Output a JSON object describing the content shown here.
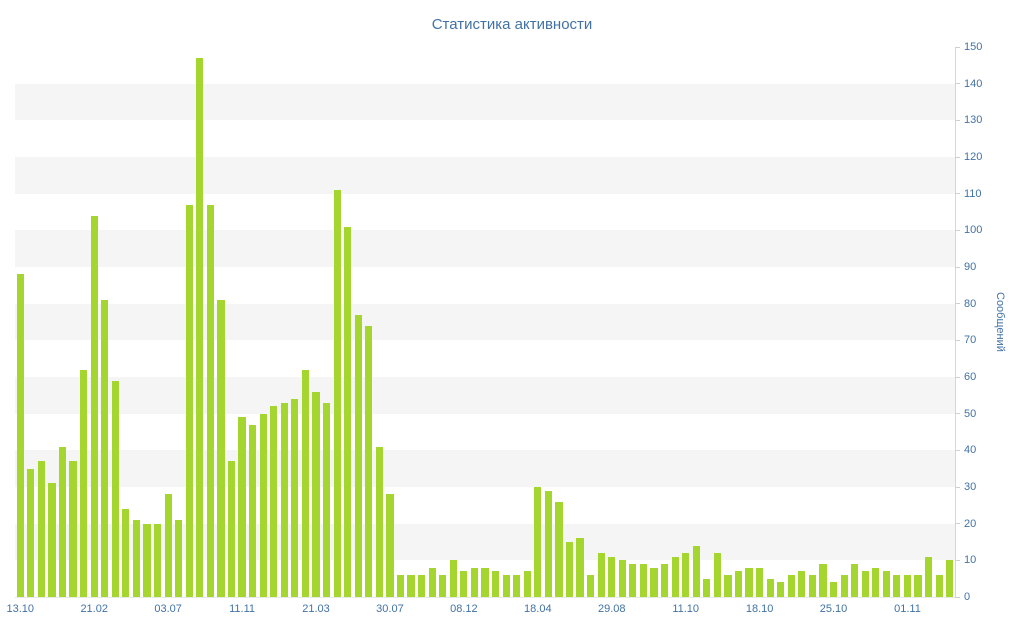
{
  "title": "Статистика активности",
  "chart_data": {
    "type": "bar",
    "title": "Статистика активности",
    "xlabel": "",
    "ylabel": "Сообщений",
    "ylim": [
      0,
      150
    ],
    "ytick_step": 10,
    "grid": "horizontal-bands",
    "legend": "none",
    "bar_color": "#a5d52f",
    "band_color": "#f5f5f5",
    "axis_text_color": "#4272a4",
    "x_tick_labels": [
      "13.10",
      "21.02",
      "03.07",
      "11.11",
      "21.03",
      "30.07",
      "08.12",
      "18.04",
      "29.08",
      "11.10",
      "18.10",
      "25.10",
      "01.11"
    ],
    "x_tick_every": 7,
    "values": [
      88,
      35,
      37,
      31,
      41,
      37,
      62,
      104,
      81,
      59,
      24,
      21,
      20,
      20,
      28,
      21,
      107,
      147,
      107,
      81,
      37,
      49,
      47,
      50,
      52,
      53,
      54,
      62,
      56,
      53,
      111,
      101,
      77,
      74,
      41,
      28,
      6,
      6,
      6,
      8,
      6,
      10,
      7,
      8,
      8,
      7,
      6,
      6,
      7,
      30,
      29,
      26,
      15,
      16,
      6,
      12,
      11,
      10,
      9,
      9,
      8,
      9,
      11,
      12,
      14,
      5,
      12,
      6,
      7,
      8,
      8,
      5,
      4,
      6,
      7,
      6,
      9,
      4,
      6,
      9,
      7,
      8,
      7,
      6,
      6,
      6,
      11,
      6,
      10
    ]
  }
}
